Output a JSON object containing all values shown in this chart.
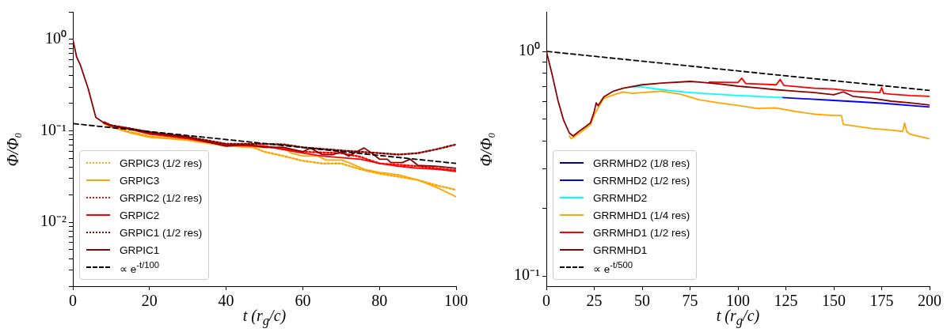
{
  "chart_data": [
    {
      "type": "line",
      "xlabel": "t (r$_{g}$/c)",
      "ylabel": "Φ/Φ₀",
      "log": "y",
      "legend": "bottom left",
      "xlim": [
        0,
        100
      ],
      "ylim": [
        0.002,
        2
      ],
      "xticks": [
        0,
        20,
        40,
        60,
        80,
        100
      ],
      "yticks": [
        {
          "value": 0.002,
          "label": null
        },
        {
          "value": 0.003,
          "label": null
        },
        {
          "value": 0.004,
          "label": null
        },
        {
          "value": 0.005,
          "label": null
        },
        {
          "value": 0.006,
          "label": null
        },
        {
          "value": 0.007,
          "label": null
        },
        {
          "value": 0.008,
          "label": null
        },
        {
          "value": 0.009,
          "label": null
        },
        {
          "value": 0.01,
          "label": "10⁻²"
        },
        {
          "value": 0.02,
          "label": null
        },
        {
          "value": 0.03,
          "label": null
        },
        {
          "value": 0.04,
          "label": null
        },
        {
          "value": 0.05,
          "label": null
        },
        {
          "value": 0.06,
          "label": null
        },
        {
          "value": 0.07,
          "label": null
        },
        {
          "value": 0.08,
          "label": null
        },
        {
          "value": 0.09,
          "label": null
        },
        {
          "value": 0.1,
          "label": "10⁻¹"
        },
        {
          "value": 0.2,
          "label": null
        },
        {
          "value": 0.3,
          "label": null
        },
        {
          "value": 0.4,
          "label": null
        },
        {
          "value": 0.5,
          "label": null
        },
        {
          "value": 0.6,
          "label": null
        },
        {
          "value": 0.7,
          "label": null
        },
        {
          "value": 0.8,
          "label": null
        },
        {
          "value": 0.9,
          "label": null
        },
        {
          "value": 1,
          "label": "10⁰"
        },
        {
          "value": 2,
          "label": null
        }
      ],
      "series": [
        {
          "name": "GRPIC3 (1/2 res)",
          "color": "#ffa500",
          "line_style": "dotted",
          "x": [
            8,
            10,
            15,
            20,
            30,
            40,
            47,
            50,
            55,
            60,
            65,
            70,
            75,
            80,
            85,
            90,
            95,
            100
          ],
          "values": [
            0.121,
            0.111,
            0.097,
            0.087,
            0.08,
            0.069,
            0.066,
            0.059,
            0.053,
            0.047,
            0.044,
            0.044,
            0.038,
            0.034,
            0.0315,
            0.029,
            0.0253,
            0.0226
          ]
        },
        {
          "name": "GRPIC3",
          "color": "#ffa500",
          "line_style": "solid",
          "x": [
            8,
            10,
            15,
            20,
            30,
            40,
            50,
            55,
            57,
            60,
            64,
            66,
            70,
            72,
            76,
            80,
            85,
            90,
            95,
            100
          ],
          "values": [
            0.12,
            0.11,
            0.095,
            0.085,
            0.079,
            0.068,
            0.066,
            0.066,
            0.057,
            0.053,
            0.053,
            0.048,
            0.048,
            0.045,
            0.038,
            0.035,
            0.033,
            0.029,
            0.024,
            0.019
          ]
        },
        {
          "name": "GRPIC2 (1/2 res)",
          "color": "#ff0000",
          "line_style": "dotted",
          "x": [
            20,
            30,
            40,
            50,
            60,
            70,
            75,
            80,
            90,
            100
          ],
          "values": [
            0.094,
            0.083,
            0.07,
            0.068,
            0.059,
            0.057,
            0.052,
            0.044,
            0.041,
            0.037
          ]
        },
        {
          "name": "GRPIC2",
          "color": "#ff0000",
          "line_style": "solid",
          "x": [
            8,
            10,
            15,
            20,
            30,
            40,
            50,
            60,
            65,
            70,
            75,
            80,
            85,
            90,
            95,
            100
          ],
          "values": [
            0.123,
            0.113,
            0.104,
            0.092,
            0.082,
            0.07,
            0.068,
            0.057,
            0.053,
            0.051,
            0.049,
            0.044,
            0.041,
            0.039,
            0.038,
            0.036
          ]
        },
        {
          "name": "GRPIC1 (1/2 res)",
          "color": "#8b0000",
          "line_style": "dotted",
          "x": [
            8,
            10,
            15,
            20,
            30,
            40,
            50,
            55,
            60,
            70,
            80,
            85,
            90,
            95,
            100
          ],
          "values": [
            0.125,
            0.115,
            0.106,
            0.097,
            0.086,
            0.072,
            0.072,
            0.071,
            0.066,
            0.061,
            0.057,
            0.055,
            0.057,
            0.063,
            0.071
          ]
        },
        {
          "name": "GRPIC1",
          "color": "#8b0000",
          "line_style": "solid",
          "x": [
            0,
            1,
            2,
            4,
            6,
            8,
            10,
            15,
            20,
            30,
            40,
            45,
            50,
            55,
            60,
            62,
            65,
            68,
            70,
            72,
            74,
            76,
            78,
            80,
            82,
            83,
            86,
            88,
            90,
            95,
            100
          ],
          "values": [
            1.0,
            0.64,
            0.52,
            0.29,
            0.14,
            0.123,
            0.114,
            0.106,
            0.095,
            0.085,
            0.068,
            0.071,
            0.066,
            0.066,
            0.059,
            0.065,
            0.055,
            0.055,
            0.059,
            0.053,
            0.059,
            0.065,
            0.057,
            0.049,
            0.049,
            0.045,
            0.045,
            0.049,
            0.042,
            0.041,
            0.039
          ]
        },
        {
          "name": "∝ e$^{-t/100}$",
          "color": "#000000",
          "line_style": "dashed",
          "x": [
            0,
            100
          ],
          "values": [
            0.12,
            0.044
          ]
        }
      ]
    },
    {
      "type": "line",
      "xlabel": "t (r$_{g}$/c)",
      "ylabel": "Φ/Φ₀",
      "log": "y",
      "legend": "bottom left",
      "xlim": [
        0,
        200
      ],
      "ylim": [
        0.09,
        1.5
      ],
      "xticks": [
        0,
        25,
        50,
        75,
        100,
        125,
        150,
        175,
        200
      ],
      "yticks": [
        {
          "value": 0.1,
          "label": "10⁻¹"
        },
        {
          "value": 0.2,
          "label": null
        },
        {
          "value": 0.3,
          "label": null
        },
        {
          "value": 0.4,
          "label": null
        },
        {
          "value": 0.5,
          "label": null
        },
        {
          "value": 0.6,
          "label": null
        },
        {
          "value": 0.7,
          "label": null
        },
        {
          "value": 0.8,
          "label": null
        },
        {
          "value": 0.9,
          "label": null
        },
        {
          "value": 1,
          "label": "10⁰"
        }
      ],
      "series": [
        {
          "name": "GRRMHD2 (1/8 res)",
          "color": "#00008b",
          "line_style": "solid"
        },
        {
          "name": "GRRMHD2 (1/2 res)",
          "color": "#0000ff",
          "line_style": "solid",
          "x": [
            123,
            150,
            175,
            200
          ],
          "values": [
            0.623,
            0.605,
            0.588,
            0.565
          ]
        },
        {
          "name": "GRRMHD2",
          "color": "#00ffff",
          "line_style": "solid",
          "x": [
            45,
            50,
            60,
            75,
            100,
            123
          ],
          "values": [
            0.695,
            0.695,
            0.675,
            0.655,
            0.636,
            0.623
          ]
        },
        {
          "name": "GRRMHD1 (1/4 res)",
          "color": "#ffa500",
          "line_style": "solid",
          "x": [
            12,
            13,
            17,
            20,
            23,
            25,
            27,
            30,
            35,
            40,
            45,
            50,
            55,
            60,
            70,
            80,
            90,
            100,
            110,
            120,
            130,
            140,
            150,
            154,
            155,
            160,
            170,
            180,
            186,
            187,
            188,
            190,
            200
          ],
          "values": [
            0.42,
            0.408,
            0.43,
            0.45,
            0.47,
            0.52,
            0.56,
            0.618,
            0.64,
            0.659,
            0.65,
            0.655,
            0.66,
            0.665,
            0.645,
            0.608,
            0.59,
            0.574,
            0.557,
            0.56,
            0.54,
            0.525,
            0.518,
            0.518,
            0.473,
            0.466,
            0.453,
            0.446,
            0.44,
            0.48,
            0.44,
            0.427,
            0.408
          ]
        },
        {
          "name": "GRRMHD1 (1/2 res)",
          "color": "#ff0000",
          "line_style": "solid",
          "x": [
            85,
            100,
            102,
            104,
            120,
            122,
            124,
            140,
            150,
            160,
            174,
            175,
            176,
            180,
            190,
            200
          ],
          "values": [
            0.73,
            0.727,
            0.76,
            0.72,
            0.71,
            0.75,
            0.705,
            0.685,
            0.68,
            0.665,
            0.655,
            0.69,
            0.65,
            0.645,
            0.636,
            0.631
          ]
        },
        {
          "name": "GRRMHD1",
          "color": "#8b0000",
          "line_style": "solid",
          "x": [
            0,
            3,
            6,
            9,
            12,
            14,
            17,
            20,
            23,
            25,
            26,
            27,
            30,
            35,
            40,
            50,
            60,
            75,
            80,
            90,
            100,
            110,
            120,
            130,
            140,
            150,
            155,
            160,
            170,
            180,
            190,
            200
          ],
          "values": [
            1.0,
            0.79,
            0.608,
            0.494,
            0.433,
            0.42,
            0.44,
            0.459,
            0.48,
            0.54,
            0.59,
            0.573,
            0.627,
            0.665,
            0.685,
            0.71,
            0.722,
            0.735,
            0.73,
            0.716,
            0.7,
            0.688,
            0.675,
            0.665,
            0.655,
            0.641,
            0.66,
            0.631,
            0.618,
            0.6,
            0.59,
            0.577
          ]
        },
        {
          "name": "∝ e$^{-t/500}$",
          "color": "#000000",
          "line_style": "dashed",
          "x": [
            0,
            200
          ],
          "values": [
            1.0,
            0.67
          ]
        }
      ]
    }
  ]
}
